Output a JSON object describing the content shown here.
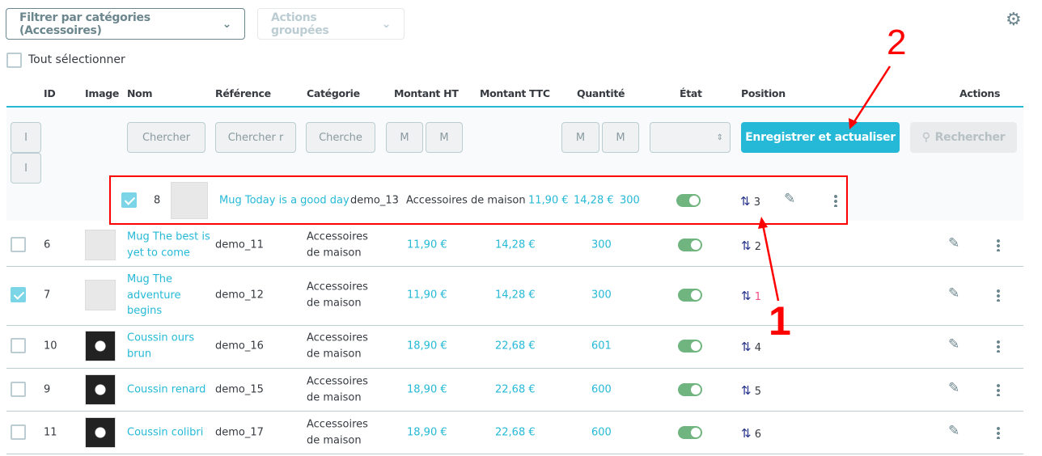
{
  "toolbar": {
    "category_filter": "Filtrer par catégories (Accessoires)",
    "bulk_actions": "Actions groupées",
    "select_all": "Tout sélectionner"
  },
  "columns": [
    "ID",
    "Image",
    "Nom",
    "Référence",
    "Catégorie",
    "Montant HT",
    "Montant TTC",
    "Quantité",
    "État",
    "Position",
    "Actions"
  ],
  "filters": {
    "id_min": "I",
    "id_max": "I",
    "name": "Chercher",
    "reference": "Chercher r",
    "category": "Cherche",
    "ht_min": "M",
    "ht_max": "M",
    "qty_min": "M",
    "qty_max": "M",
    "save_button": "Enregistrer et actualiser",
    "search_button": "Rechercher"
  },
  "dragged_row": {
    "id": "8",
    "name": "Mug Today is a good day",
    "reference": "demo_13",
    "category": "Accessoires de maison",
    "price_ht": "11,90 €",
    "price_ttc": "14,28 €",
    "quantity": "300",
    "active": true,
    "position": "3",
    "checked": true
  },
  "rows": [
    {
      "id": "6",
      "name": "Mug The best is yet to come",
      "reference": "demo_11",
      "category": "Accessoires de maison",
      "price_ht": "11,90 €",
      "price_ttc": "14,28 €",
      "quantity": "300",
      "active": true,
      "position": "2",
      "checked": false,
      "dark": false
    },
    {
      "id": "7",
      "name": "Mug The adventure begins",
      "reference": "demo_12",
      "category": "Accessoires de maison",
      "price_ht": "11,90 €",
      "price_ttc": "14,28 €",
      "quantity": "300",
      "active": true,
      "position": "1",
      "checked": true,
      "dark": false,
      "highlight": true
    },
    {
      "id": "10",
      "name": "Coussin ours brun",
      "reference": "demo_16",
      "category": "Accessoires de maison",
      "price_ht": "18,90 €",
      "price_ttc": "22,68 €",
      "quantity": "601",
      "active": true,
      "position": "4",
      "checked": false,
      "dark": true
    },
    {
      "id": "9",
      "name": "Coussin renard",
      "reference": "demo_15",
      "category": "Accessoires de maison",
      "price_ht": "18,90 €",
      "price_ttc": "22,68 €",
      "quantity": "600",
      "active": true,
      "position": "5",
      "checked": false,
      "dark": true
    },
    {
      "id": "11",
      "name": "Coussin colibri",
      "reference": "demo_17",
      "category": "Accessoires de maison",
      "price_ht": "18,90 €",
      "price_ttc": "22,68 €",
      "quantity": "600",
      "active": true,
      "position": "6",
      "checked": false,
      "dark": true
    }
  ],
  "annotations": {
    "label_1": "1",
    "label_2": "2"
  },
  "colors": {
    "accent": "#25b9d7",
    "annotation": "#ff0000",
    "toggle_on": "#70b580",
    "position_highlight": "#f54c8a"
  }
}
